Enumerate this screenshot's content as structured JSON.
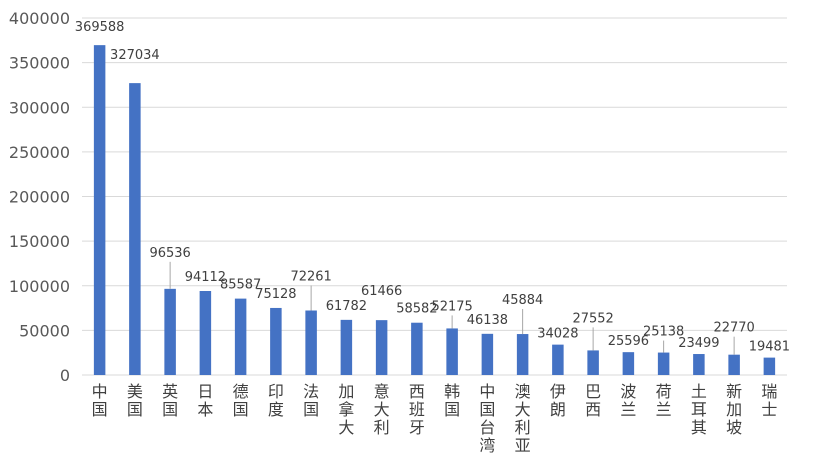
{
  "chart_data": {
    "type": "bar",
    "title": "",
    "xlabel": "",
    "ylabel": "",
    "ylim": [
      0,
      400000
    ],
    "yticks": [
      0,
      50000,
      100000,
      150000,
      200000,
      250000,
      300000,
      350000,
      400000
    ],
    "ytick_labels": [
      "0",
      "50000",
      "100000",
      "150000",
      "200000",
      "250000",
      "300000",
      "350000",
      "400000"
    ],
    "grid": true,
    "legend": "none",
    "bar_color": "#4472c4",
    "categories": [
      "中国",
      "美国",
      "英国",
      "日本",
      "德国",
      "印度",
      "法国",
      "加拿大",
      "意大利",
      "西班牙",
      "韩国",
      "中国台湾",
      "澳大利亚",
      "伊朗",
      "巴西",
      "波兰",
      "荷兰",
      "土耳其",
      "新加坡",
      "瑞士"
    ],
    "values": [
      369588,
      327034,
      96536,
      94112,
      85587,
      75128,
      72261,
      61782,
      61466,
      58582,
      52175,
      46138,
      45884,
      34028,
      27552,
      25596,
      25138,
      23499,
      22770,
      19481
    ],
    "value_labels": [
      "369588",
      "327034",
      "96536",
      "94112",
      "85587",
      "75128",
      "72261",
      "61782",
      "61466",
      "58582",
      "52175",
      "46138",
      "45884",
      "34028",
      "27552",
      "25596",
      "25138",
      "23499",
      "22770",
      "19481"
    ]
  }
}
